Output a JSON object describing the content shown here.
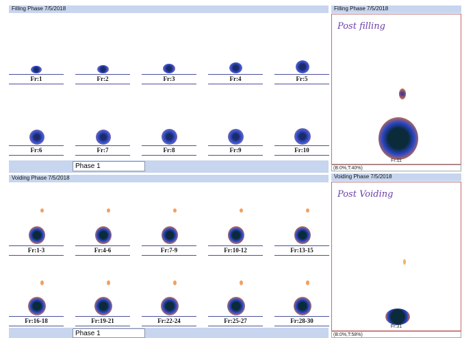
{
  "filling": {
    "header": "Filling Phase 7/5/2018",
    "panel_header": "Filling Phase 7/5/2018",
    "phase_label": "Phase 1",
    "frames": [
      "Fr:1",
      "Fr:2",
      "Fr:3",
      "Fr:4",
      "Fr:5",
      "Fr:6",
      "Fr:7",
      "Fr:8",
      "Fr:9",
      "Fr:10"
    ],
    "big_panel": {
      "note": "Post filling",
      "frame": "Fr:11",
      "stats": "(B:0%,T:40%)"
    }
  },
  "voiding": {
    "header": "Voiding Phase 7/5/2018",
    "panel_header": "Voiding Phase 7/5/2018",
    "phase_label": "Phase 1",
    "frames": [
      "Fr:1-3",
      "Fr:4-6",
      "Fr:7-9",
      "Fr:10-12",
      "Fr:13-15",
      "Fr:16-18",
      "Fr:19-21",
      "Fr:22-24",
      "Fr:25-27",
      "Fr:28-30"
    ],
    "big_panel": {
      "note": "Post Voiding",
      "frame": "Fr:31",
      "stats": "(B:0%,T:58%)"
    }
  },
  "colors": {
    "header_bg": "#c7d5ee",
    "scan_core": "#0b2a3a",
    "scan_mid": "#2a46c8",
    "scan_outer": "#f0843a"
  }
}
